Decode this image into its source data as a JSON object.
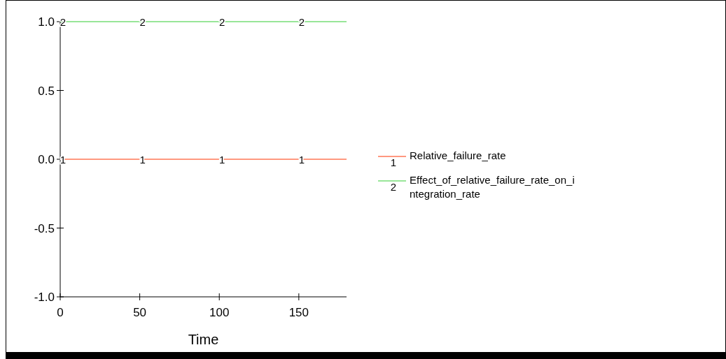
{
  "chart_data": {
    "type": "line",
    "xlabel": "Time",
    "xlim": [
      0,
      180
    ],
    "xticks": [
      0,
      50,
      100,
      150
    ],
    "ylim": [
      -1,
      1
    ],
    "yticks": [
      {
        "value": -1,
        "label": "-1.0"
      },
      {
        "value": -0.5,
        "label": "-0.5"
      },
      {
        "value": 0,
        "label": "0.0"
      },
      {
        "value": 0.5,
        "label": "0.5"
      },
      {
        "value": 1,
        "label": "1.0"
      }
    ],
    "x": [
      0,
      50,
      100,
      150,
      180
    ],
    "legend": "right",
    "grid": false,
    "series": [
      {
        "name": "Relative_failure_rate",
        "color": "#ff3300",
        "values": [
          0,
          0,
          0,
          0,
          0
        ]
      },
      {
        "name": "Effect_of_relative_failure_rate_on_integration_rate",
        "color": "#33cc33",
        "values": [
          1,
          1,
          1,
          1,
          1
        ]
      }
    ],
    "annotations": [
      {
        "text": "1",
        "x": 0,
        "y": 0
      },
      {
        "text": "1",
        "x": 50,
        "y": 0
      },
      {
        "text": "1",
        "x": 100,
        "y": 0
      },
      {
        "text": "1",
        "x": 150,
        "y": 0
      },
      {
        "text": "2",
        "x": 0,
        "y": 1
      },
      {
        "text": "2",
        "x": 50,
        "y": 1
      },
      {
        "text": "2",
        "x": 100,
        "y": 1
      },
      {
        "text": "2",
        "x": 150,
        "y": 1
      }
    ]
  }
}
